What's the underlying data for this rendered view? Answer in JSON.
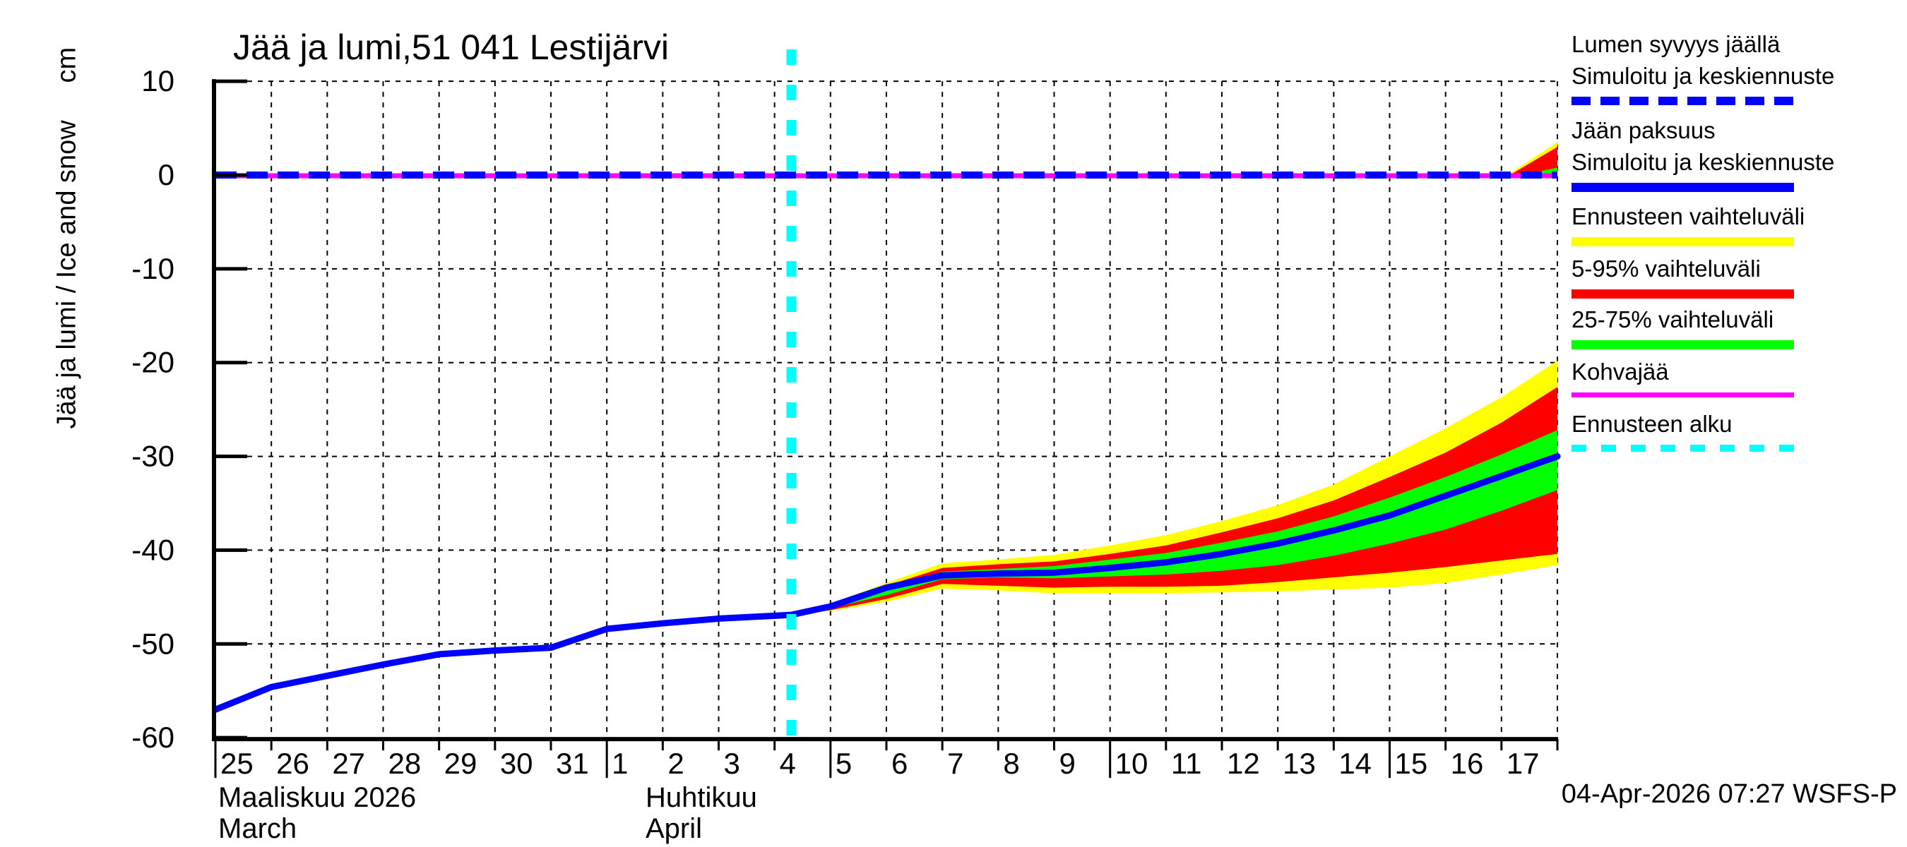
{
  "title": "Jää ja lumi,51 041 Lestijärvi",
  "timestamp": "04-Apr-2026 07:27 WSFS-P",
  "y_axis": {
    "label": "Jää ja lumi / Ice and snow     cm",
    "ticks": [
      10,
      0,
      -10,
      -20,
      -30,
      -40,
      -50,
      -60
    ]
  },
  "x_axis": {
    "day_labels": [
      "25",
      "26",
      "27",
      "28",
      "29",
      "30",
      "31",
      "1",
      "2",
      "3",
      "4",
      "5",
      "6",
      "7",
      "8",
      "9",
      "10",
      "11",
      "12",
      "13",
      "14",
      "15",
      "16",
      "17"
    ],
    "long_tick_labels": [
      "25",
      "1",
      "5",
      "10",
      "15"
    ],
    "months": [
      {
        "fi": "Maaliskuu 2026",
        "en": "March"
      },
      {
        "fi": "Huhtikuu",
        "en": "April"
      }
    ]
  },
  "legend": {
    "entries": [
      {
        "line1": "Lumen syvyys jäällä",
        "line2": "Simuloitu ja keskiennuste",
        "color": "#0000ff",
        "style": "dashed"
      },
      {
        "line1": "Jään paksuus",
        "line2": "Simuloitu ja keskiennuste",
        "color": "#0000ff",
        "style": "solid"
      },
      {
        "line1": "Ennusteen vaihteluväli",
        "color": "#ffff00",
        "style": "solid"
      },
      {
        "line1": "5-95% vaihteluväli",
        "color": "#ff0000",
        "style": "solid"
      },
      {
        "line1": "25-75% vaihteluväli",
        "color": "#00ff00",
        "style": "solid"
      },
      {
        "line1": "Kohvajää",
        "color": "#ff00ff",
        "style": "solid"
      },
      {
        "line1": "Ennusteen alku",
        "color": "#00ffff",
        "style": "dashed"
      }
    ]
  },
  "colors": {
    "ice_line": "#0000ff",
    "snow_line": "#0000ff",
    "kohvajaa": "#ff00ff",
    "forecast_start": "#00ffff",
    "band_full": "#ffff00",
    "band_5_95": "#ff0000",
    "band_25_75": "#00ff00",
    "axis": "#000000",
    "background": "#ffffff"
  },
  "chart_data": {
    "type": "line",
    "title": "Jää ja lumi,51 041 Lestijärvi",
    "ylabel": "Jää ja lumi / Ice and snow (cm)",
    "ylim": [
      -60,
      10
    ],
    "x_unit": "days since 2026-03-25",
    "x_range": [
      0,
      24
    ],
    "grid": true,
    "legend_position": "right-outside",
    "forecast_start_day": 10.3,
    "series": [
      {
        "name": "Jään paksuus — Simuloitu ja keskiennuste",
        "color": "#0000ff",
        "style": "solid",
        "width": 9,
        "x": [
          0,
          1,
          2,
          3,
          4,
          5,
          6,
          7,
          8,
          9,
          10,
          10.3,
          11,
          12,
          13,
          14,
          15,
          16,
          17,
          18,
          19,
          20,
          21,
          22,
          23,
          24
        ],
        "y": [
          -57,
          -54.6,
          -53.4,
          -52.2,
          -51.1,
          -50.7,
          -50.4,
          -48.4,
          -47.8,
          -47.3,
          -47.0,
          -46.9,
          -46.0,
          -44.0,
          -42.7,
          -42.5,
          -42.4,
          -41.9,
          -41.3,
          -40.4,
          -39.3,
          -37.9,
          -36.3,
          -34.2,
          -32.1,
          -30.0
        ]
      },
      {
        "name": "Lumen syvyys jäällä — Simuloitu ja keskiennuste",
        "color": "#0000ff",
        "style": "dashed",
        "width": 10,
        "x": [
          0,
          24
        ],
        "y": [
          0,
          0
        ]
      },
      {
        "name": "Kohvajää",
        "color": "#ff00ff",
        "style": "solid",
        "width": 7,
        "x": [
          0,
          24
        ],
        "y": [
          0,
          0
        ]
      }
    ],
    "bands": [
      {
        "name": "Ennusteen vaihteluväli (jään paksuus)",
        "color": "#ffff00",
        "x": [
          10.3,
          11,
          12,
          13,
          14,
          15,
          16,
          17,
          18,
          19,
          20,
          21,
          22,
          23,
          24
        ],
        "top": [
          -46.9,
          -45.7,
          -43.5,
          -41.4,
          -41.0,
          -40.5,
          -39.5,
          -38.4,
          -36.9,
          -35.2,
          -33.0,
          -30.0,
          -27.0,
          -23.7,
          -19.8
        ],
        "bottom": [
          -46.9,
          -46.5,
          -45.5,
          -44.1,
          -44.3,
          -44.6,
          -44.6,
          -44.6,
          -44.5,
          -44.4,
          -44.2,
          -44.0,
          -43.5,
          -42.6,
          -41.6
        ]
      },
      {
        "name": "5-95% vaihteluväli (jään paksuus)",
        "color": "#ff0000",
        "x": [
          10.3,
          11,
          12,
          13,
          14,
          15,
          16,
          17,
          18,
          19,
          20,
          21,
          22,
          23,
          24
        ],
        "top": [
          -46.9,
          -45.9,
          -43.8,
          -41.9,
          -41.5,
          -41.2,
          -40.4,
          -39.5,
          -38.1,
          -36.6,
          -34.7,
          -32.2,
          -29.6,
          -26.4,
          -22.6
        ],
        "bottom": [
          -46.9,
          -46.4,
          -45.2,
          -43.6,
          -43.8,
          -44.0,
          -43.9,
          -43.9,
          -43.8,
          -43.4,
          -42.9,
          -42.4,
          -41.8,
          -41.1,
          -40.4
        ]
      },
      {
        "name": "25-75% vaihteluväli (jään paksuus)",
        "color": "#00ff00",
        "x": [
          10.3,
          11,
          12,
          13,
          14,
          15,
          16,
          17,
          18,
          19,
          20,
          21,
          22,
          23,
          24
        ],
        "top": [
          -46.9,
          -46.0,
          -44.2,
          -42.3,
          -42.0,
          -41.7,
          -41.0,
          -40.3,
          -39.2,
          -38.0,
          -36.4,
          -34.4,
          -32.2,
          -29.8,
          -27.2
        ],
        "bottom": [
          -46.9,
          -46.2,
          -44.8,
          -43.1,
          -42.9,
          -43.0,
          -42.8,
          -42.6,
          -42.2,
          -41.6,
          -40.6,
          -39.3,
          -37.8,
          -35.8,
          -33.6
        ]
      },
      {
        "name": "Ennusteen vaihteluväli (lumen syvyys)",
        "color": "#ffff00",
        "x": [
          23.1,
          24
        ],
        "top": [
          0,
          3.5
        ],
        "bottom": [
          0,
          0
        ]
      },
      {
        "name": "5-95% vaihteluväli (lumen syvyys)",
        "color": "#ff0000",
        "x": [
          23.15,
          24
        ],
        "top": [
          0,
          3.0
        ],
        "bottom": [
          0,
          0
        ]
      },
      {
        "name": "25-75% vaihteluväli (lumen syvyys)",
        "color": "#00ff00",
        "x": [
          23.4,
          24
        ],
        "top": [
          0,
          0.8
        ],
        "bottom": [
          0,
          0
        ]
      }
    ]
  }
}
